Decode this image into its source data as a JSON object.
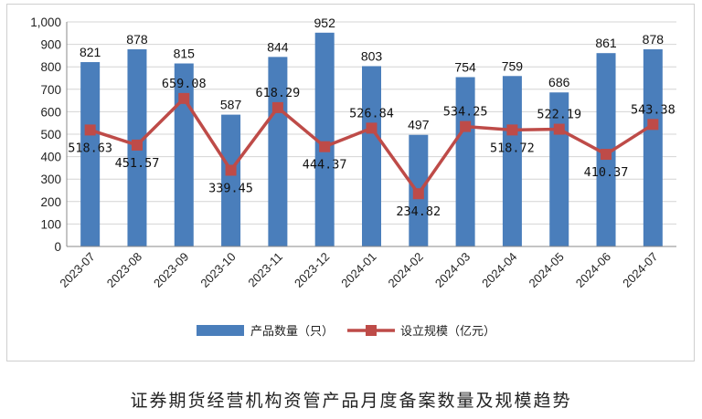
{
  "caption": "证券期货经营机构资管产品月度备案数量及规模趋势",
  "colors": {
    "bar": "#4a7ebb",
    "line": "#be4b48"
  },
  "chart_data": {
    "type": "bar",
    "categories": [
      "2023-07",
      "2023-08",
      "2023-09",
      "2023-10",
      "2023-11",
      "2023-12",
      "2024-01",
      "2024-02",
      "2024-03",
      "2024-04",
      "2024-05",
      "2024-06",
      "2024-07"
    ],
    "ylim": [
      0,
      1000
    ],
    "yticks": [
      "0",
      "100",
      "200",
      "300",
      "400",
      "500",
      "600",
      "700",
      "800",
      "900",
      "1,000"
    ],
    "grid": true,
    "legend_position": "bottom",
    "series": [
      {
        "name": "产品数量（只）",
        "type": "bar",
        "values": [
          821,
          878,
          815,
          587,
          844,
          952,
          803,
          497,
          754,
          759,
          686,
          861,
          878
        ],
        "labels": [
          "821",
          "878",
          "815",
          "587",
          "844",
          "952",
          "803",
          "497",
          "754",
          "759",
          "686",
          "861",
          "878"
        ]
      },
      {
        "name": "设立规模（亿元）",
        "type": "line",
        "values": [
          518.63,
          451.57,
          659.08,
          339.45,
          618.29,
          444.37,
          526.84,
          234.82,
          534.25,
          518.72,
          522.19,
          410.37,
          543.38
        ],
        "labels": [
          "518.63",
          "451.57",
          "659.08",
          "339.45",
          "618.29",
          "444.37",
          "526.84",
          "234.82",
          "534.25",
          "518.72",
          "522.19",
          "410.37",
          "543.38"
        ]
      }
    ]
  }
}
